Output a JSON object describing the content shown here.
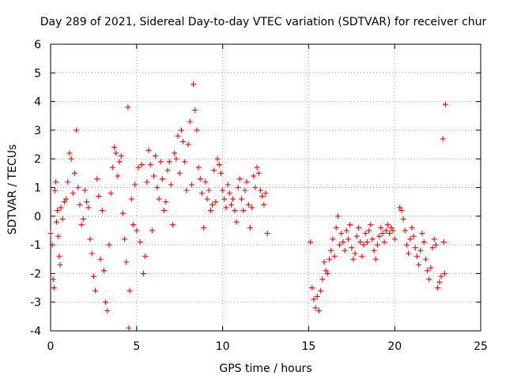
{
  "chart_data": {
    "type": "scatter",
    "title": "Day 289 of 2021, Sidereal Day-to-day VTEC variation (SDTVAR) for receiver chur",
    "xlabel": "GPS time / hours",
    "ylabel": "SDTVAR / TECUs",
    "xlim": [
      0,
      25
    ],
    "ylim": [
      -4,
      6
    ],
    "xticks": [
      0,
      5,
      10,
      15,
      20,
      25
    ],
    "yticks": [
      -4,
      -3,
      -2,
      -1,
      0,
      1,
      2,
      3,
      4,
      5,
      6
    ],
    "grid": true,
    "marker": "+",
    "marker_color": "#ff0000",
    "series": [
      {
        "name": "SDTVAR",
        "x": [
          0.0,
          0.1,
          0.15,
          0.2,
          0.25,
          0.3,
          0.35,
          0.4,
          0.45,
          0.5,
          0.55,
          0.6,
          0.7,
          0.8,
          0.9,
          1.0,
          1.1,
          1.2,
          1.3,
          1.4,
          1.5,
          1.6,
          1.7,
          1.8,
          1.9,
          2.0,
          2.1,
          2.2,
          2.3,
          2.4,
          2.5,
          2.6,
          2.7,
          2.8,
          2.9,
          3.0,
          3.1,
          3.2,
          3.3,
          3.4,
          3.5,
          3.6,
          3.7,
          3.8,
          3.9,
          4.0,
          4.1,
          4.2,
          4.3,
          4.4,
          4.5,
          4.55,
          4.6,
          4.7,
          4.8,
          4.9,
          5.0,
          5.1,
          5.2,
          5.3,
          5.4,
          5.5,
          5.6,
          5.7,
          5.8,
          5.9,
          6.0,
          6.1,
          6.2,
          6.3,
          6.4,
          6.5,
          6.6,
          6.7,
          6.8,
          6.9,
          7.0,
          7.1,
          7.2,
          7.3,
          7.4,
          7.5,
          7.6,
          7.7,
          7.8,
          7.9,
          8.0,
          8.1,
          8.2,
          8.3,
          8.4,
          8.5,
          8.6,
          8.7,
          8.8,
          8.9,
          9.0,
          9.1,
          9.2,
          9.3,
          9.4,
          9.5,
          9.6,
          9.7,
          9.8,
          9.9,
          10.0,
          10.1,
          10.2,
          10.3,
          10.4,
          10.5,
          10.6,
          10.7,
          10.8,
          10.9,
          11.0,
          11.1,
          11.2,
          11.3,
          11.4,
          11.5,
          11.6,
          11.7,
          11.8,
          11.9,
          12.0,
          12.1,
          12.2,
          12.3,
          12.4,
          12.5,
          12.6,
          15.1,
          15.2,
          15.3,
          15.4,
          15.5,
          15.6,
          15.7,
          15.8,
          15.9,
          16.0,
          16.1,
          16.2,
          16.3,
          16.4,
          16.5,
          16.6,
          16.7,
          16.8,
          16.9,
          17.0,
          17.1,
          17.2,
          17.3,
          17.4,
          17.5,
          17.6,
          17.7,
          17.8,
          17.9,
          18.0,
          18.1,
          18.2,
          18.3,
          18.4,
          18.5,
          18.6,
          18.7,
          18.8,
          18.9,
          19.0,
          19.1,
          19.2,
          19.3,
          19.4,
          19.5,
          19.6,
          19.7,
          19.8,
          19.9,
          20.0,
          20.3,
          20.4,
          20.5,
          20.6,
          20.7,
          20.8,
          20.9,
          21.0,
          21.1,
          21.2,
          21.3,
          21.4,
          21.5,
          21.6,
          21.7,
          21.8,
          21.9,
          22.0,
          22.1,
          22.2,
          22.3,
          22.4,
          22.5,
          22.6,
          22.7,
          22.8,
          22.85,
          22.9,
          22.95
        ],
        "y": [
          -0.6,
          -1.0,
          -2.2,
          -2.5,
          0.9,
          1.2,
          -0.2,
          0.2,
          -0.7,
          -1.4,
          -1.7,
          0.3,
          -0.1,
          0.5,
          0.6,
          1.2,
          2.2,
          2.0,
          0.8,
          1.5,
          3.0,
          1.0,
          0.4,
          -0.3,
          -0.1,
          0.9,
          0.5,
          0.3,
          -0.8,
          -1.3,
          -2.1,
          -2.6,
          1.3,
          0.7,
          -1.5,
          0.2,
          -1.9,
          -3.0,
          -3.3,
          -1.0,
          0.8,
          1.7,
          2.4,
          2.2,
          1.4,
          1.9,
          2.1,
          0.1,
          -0.8,
          -1.6,
          3.8,
          -3.9,
          -2.6,
          0.6,
          -0.3,
          1.1,
          -0.5,
          1.7,
          -0.9,
          1.8,
          -2.0,
          -1.4,
          1.2,
          2.3,
          1.8,
          -0.5,
          1.4,
          2.1,
          1.0,
          0.6,
          1.9,
          1.3,
          0.2,
          0.5,
          1.6,
          1.9,
          1.1,
          -0.3,
          2.2,
          2.0,
          2.8,
          1.5,
          3.0,
          2.6,
          1.9,
          0.9,
          2.5,
          3.3,
          1.1,
          4.6,
          3.7,
          3.0,
          1.7,
          1.3,
          0.8,
          -0.4,
          1.2,
          0.6,
          0.9,
          0.2,
          0.4,
          1.6,
          0.5,
          2.0,
          1.8,
          1.5,
          0.9,
          0.6,
          0.3,
          1.1,
          0.8,
          0.4,
          0.6,
          0.2,
          -0.2,
          1.0,
          1.3,
          0.6,
          0.2,
          0.9,
          1.2,
          0.4,
          -0.4,
          0.3,
          1.4,
          1.0,
          1.7,
          1.5,
          0.9,
          0.7,
          0.4,
          0.8,
          -0.6,
          -0.9,
          -2.5,
          -2.9,
          -3.2,
          -2.8,
          -3.3,
          -2.6,
          -2.2,
          -1.6,
          -1.9,
          -2.0,
          -1.5,
          -1.2,
          -0.8,
          -1.4,
          -0.4,
          0.0,
          -1.0,
          -0.6,
          -0.9,
          -1.2,
          -0.5,
          -0.8,
          -0.3,
          -1.1,
          -1.5,
          -1.3,
          -0.7,
          -0.4,
          -0.9,
          -1.4,
          -1.0,
          -0.6,
          -0.9,
          -0.5,
          -0.3,
          -0.8,
          -1.2,
          -1.5,
          -1.0,
          -0.7,
          -0.4,
          -0.6,
          -0.9,
          -0.5,
          -0.3,
          -0.6,
          -0.4,
          -0.5,
          -0.8,
          0.3,
          0.2,
          -0.1,
          -0.5,
          -1.0,
          -1.3,
          -0.8,
          -0.4,
          -0.7,
          -1.1,
          -1.4,
          -1.7,
          -1.2,
          -0.6,
          -0.9,
          -1.5,
          -1.9,
          -2.2,
          -1.8,
          -1.1,
          -0.8,
          -1.0,
          -2.5,
          -2.3,
          -2.1,
          2.7,
          -0.9,
          -2.0,
          3.9
        ]
      }
    ]
  }
}
